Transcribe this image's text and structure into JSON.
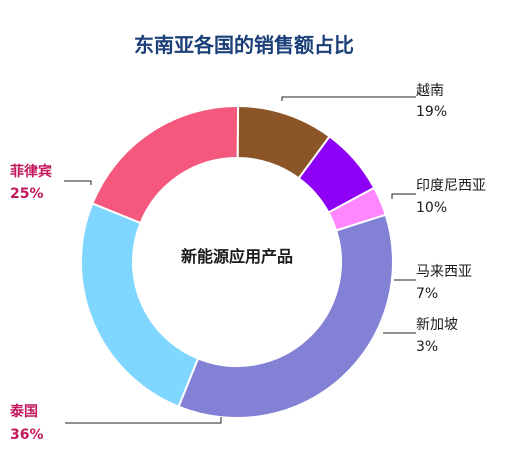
{
  "chart_data": {
    "type": "pie",
    "title": "东南亚各国的销售额占比",
    "center_label": "新能源应用产品",
    "slices": [
      {
        "label": "越南",
        "value": 19,
        "display": "19%",
        "color": "#f4587d"
      },
      {
        "label": "印度尼西亚",
        "value": 10,
        "display": "10%",
        "color": "#8b5528"
      },
      {
        "label": "马来西亚",
        "value": 7,
        "display": "7%",
        "color": "#8e00f5"
      },
      {
        "label": "新加坡",
        "value": 3,
        "display": "3%",
        "color": "#ff86ff"
      },
      {
        "label": "泰国",
        "value": 36,
        "display": "36%",
        "color": "#8281d6"
      },
      {
        "label": "菲律宾",
        "value": 25,
        "display": "25%",
        "color": "#7fd6ff"
      }
    ]
  },
  "colors": {
    "title": "#1b3f78",
    "body_text": "#1c1c1c",
    "highlight_text": "#c2185b",
    "leader_line": "#222222"
  }
}
